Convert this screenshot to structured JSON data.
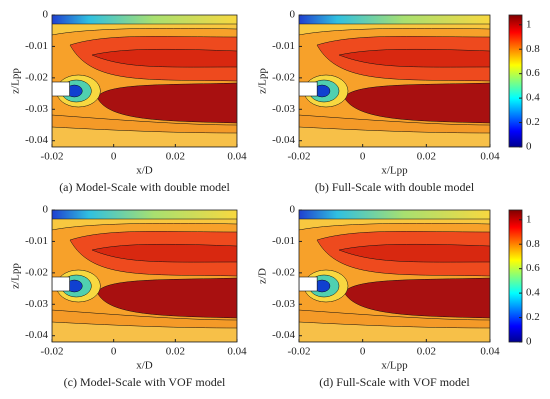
{
  "chart_data": [
    {
      "type": "contour",
      "caption": "(a) Model-Scale with double model",
      "xlabel": "x/D",
      "ylabel": "z/Lpp",
      "xlim": [
        -0.02,
        0.04
      ],
      "xticks": [
        -0.02,
        0,
        0.02,
        0.04
      ],
      "ylim": [
        -0.042,
        0
      ],
      "yticks": [
        0,
        -0.01,
        -0.02,
        -0.03,
        -0.04
      ]
    },
    {
      "type": "contour",
      "caption": "(b) Full-Scale with double model",
      "xlabel": "x/Lpp",
      "ylabel": "z/Lpp",
      "xlim": [
        -0.02,
        0.04
      ],
      "xticks": [
        -0.02,
        0,
        0.02,
        0.04
      ],
      "ylim": [
        -0.042,
        0
      ],
      "yticks": [
        0,
        -0.01,
        -0.02,
        -0.03,
        -0.04
      ],
      "colorbar": {
        "lim": [
          0,
          1.08
        ],
        "ticks": [
          0,
          0.2,
          0.4,
          0.6,
          0.8,
          1
        ]
      }
    },
    {
      "type": "contour",
      "caption": "(c) Model-Scale with VOF model",
      "xlabel": "x/D",
      "ylabel": "z/Lpp",
      "xlim": [
        -0.02,
        0.04
      ],
      "xticks": [
        -0.02,
        0,
        0.02,
        0.04
      ],
      "ylim": [
        -0.042,
        0
      ],
      "yticks": [
        0,
        -0.01,
        -0.02,
        -0.03,
        -0.04
      ]
    },
    {
      "type": "contour",
      "caption": "(d) Full-Scale with VOF model",
      "xlabel": "x/Lpp",
      "ylabel": "z/D",
      "xlim": [
        -0.02,
        0.04
      ],
      "xticks": [
        -0.02,
        0,
        0.02,
        0.04
      ],
      "ylim": [
        -0.042,
        0
      ],
      "yticks": [
        0,
        -0.01,
        -0.02,
        -0.03,
        -0.04
      ],
      "colorbar": {
        "lim": [
          0,
          1.08
        ],
        "ticks": [
          0,
          0.2,
          0.4,
          0.6,
          0.8,
          1
        ]
      }
    }
  ]
}
